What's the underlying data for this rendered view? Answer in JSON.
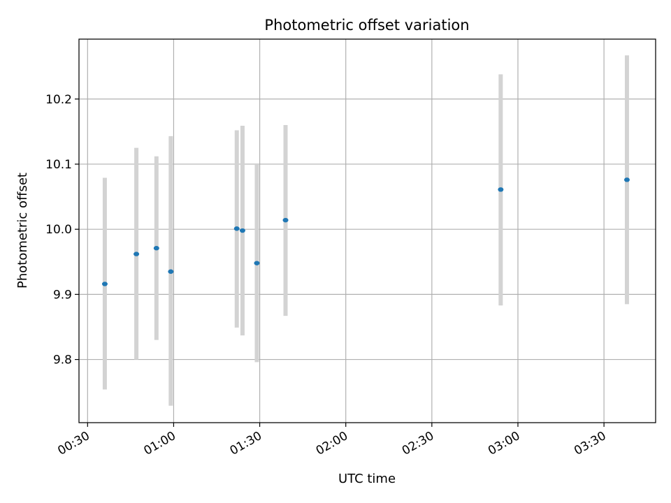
{
  "chart_data": {
    "type": "scatter",
    "title": "Photometric offset variation",
    "xlabel": "UTC time",
    "ylabel": "Photometric offset",
    "x_unit": "UTC time (HH:MM)",
    "xlim": [
      "00:27",
      "03:48"
    ],
    "ylim": [
      9.703,
      10.292
    ],
    "x_ticks": [
      "00:30",
      "01:00",
      "01:30",
      "02:00",
      "02:30",
      "03:00",
      "03:30"
    ],
    "y_ticks": [
      9.8,
      9.9,
      10.0,
      10.1,
      10.2
    ],
    "y_tick_labels": [
      "9.8",
      "9.9",
      "10.0",
      "10.1",
      "10.2"
    ],
    "grid": true,
    "legend": "none",
    "colors": {
      "point": "#1f77b4",
      "errorbar": "#d3d3d3",
      "grid": "#b0b0b0",
      "axis": "#000000"
    },
    "points": [
      {
        "x": "00:36",
        "y": 9.916,
        "ylow": 9.754,
        "yhigh": 10.079
      },
      {
        "x": "00:47",
        "y": 9.962,
        "ylow": 9.8,
        "yhigh": 10.125
      },
      {
        "x": "00:54",
        "y": 9.971,
        "ylow": 9.83,
        "yhigh": 10.112
      },
      {
        "x": "00:59",
        "y": 9.935,
        "ylow": 9.729,
        "yhigh": 10.143
      },
      {
        "x": "01:22",
        "y": 10.001,
        "ylow": 9.849,
        "yhigh": 10.152
      },
      {
        "x": "01:24",
        "y": 9.998,
        "ylow": 9.837,
        "yhigh": 10.159
      },
      {
        "x": "01:29",
        "y": 9.948,
        "ylow": 9.796,
        "yhigh": 10.1
      },
      {
        "x": "01:39",
        "y": 10.014,
        "ylow": 9.867,
        "yhigh": 10.16
      },
      {
        "x": "02:54",
        "y": 10.061,
        "ylow": 9.883,
        "yhigh": 10.238
      },
      {
        "x": "03:38",
        "y": 10.076,
        "ylow": 9.885,
        "yhigh": 10.267
      }
    ]
  }
}
